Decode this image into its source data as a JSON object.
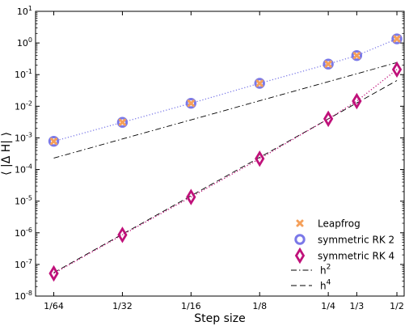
{
  "chart_data": {
    "type": "line",
    "xlabel": "Step size",
    "ylabel": "⟨ |Δ H| ⟩",
    "x_scale": "log",
    "y_scale": "log",
    "ylim": [
      1e-08,
      10
    ],
    "xlim": [
      0.013,
      0.538
    ],
    "grid": false,
    "legend_position": "bottom-right",
    "x_ticks": [
      {
        "value": 0.015625,
        "label": "1/64"
      },
      {
        "value": 0.03125,
        "label": "1/32"
      },
      {
        "value": 0.0625,
        "label": "1/16"
      },
      {
        "value": 0.125,
        "label": "1/8"
      },
      {
        "value": 0.25,
        "label": "1/4"
      },
      {
        "value": 0.3333333,
        "label": "1/3"
      },
      {
        "value": 0.5,
        "label": "1/2"
      }
    ],
    "y_ticks": [
      {
        "value": 1e-08,
        "base": "10",
        "exp": "-8"
      },
      {
        "value": 1e-07,
        "base": "10",
        "exp": "-7"
      },
      {
        "value": 1e-06,
        "base": "10",
        "exp": "-6"
      },
      {
        "value": 1e-05,
        "base": "10",
        "exp": "-5"
      },
      {
        "value": 0.0001,
        "base": "10",
        "exp": "-4"
      },
      {
        "value": 0.001,
        "base": "10",
        "exp": "-3"
      },
      {
        "value": 0.01,
        "base": "10",
        "exp": "-2"
      },
      {
        "value": 0.1,
        "base": "10",
        "exp": "-1"
      },
      {
        "value": 1,
        "base": "10",
        "exp": "0"
      },
      {
        "value": 10,
        "base": "10",
        "exp": "1"
      }
    ],
    "series": [
      {
        "name": "Leapfrog",
        "marker": "x",
        "color": "#f5a05a",
        "x": [
          0.015625,
          0.03125,
          0.0625,
          0.125,
          0.25,
          0.3333333,
          0.5
        ],
        "y": [
          0.00078,
          0.0031,
          0.0124,
          0.053,
          0.215,
          0.4,
          1.35
        ]
      },
      {
        "name": "symmetric RK 2",
        "marker": "circle",
        "color": "#7a78e8",
        "line": "dotted",
        "x": [
          0.015625,
          0.03125,
          0.0625,
          0.125,
          0.25,
          0.3333333,
          0.5
        ],
        "y": [
          0.00078,
          0.0031,
          0.0124,
          0.053,
          0.215,
          0.4,
          1.35
        ]
      },
      {
        "name": "symmetric RK 4",
        "marker": "diamond",
        "color": "#c0117a",
        "line": "dotted",
        "x": [
          0.015625,
          0.03125,
          0.0625,
          0.125,
          0.25,
          0.3333333,
          0.5
        ],
        "y": [
          5.2e-08,
          8.6e-07,
          1.35e-05,
          0.00022,
          0.004,
          0.0145,
          0.145
        ]
      },
      {
        "name": "h²",
        "legend_base": "h",
        "legend_exp": "2",
        "style": "dashdot",
        "color": "#000000",
        "x": [
          0.015625,
          0.5
        ],
        "y": [
          0.00023,
          0.24
        ]
      },
      {
        "name": "h⁴",
        "legend_base": "h",
        "legend_exp": "4",
        "style": "dashed",
        "color": "#000000",
        "x": [
          0.015625,
          0.5
        ],
        "y": [
          5.5e-08,
          0.065
        ]
      }
    ]
  }
}
